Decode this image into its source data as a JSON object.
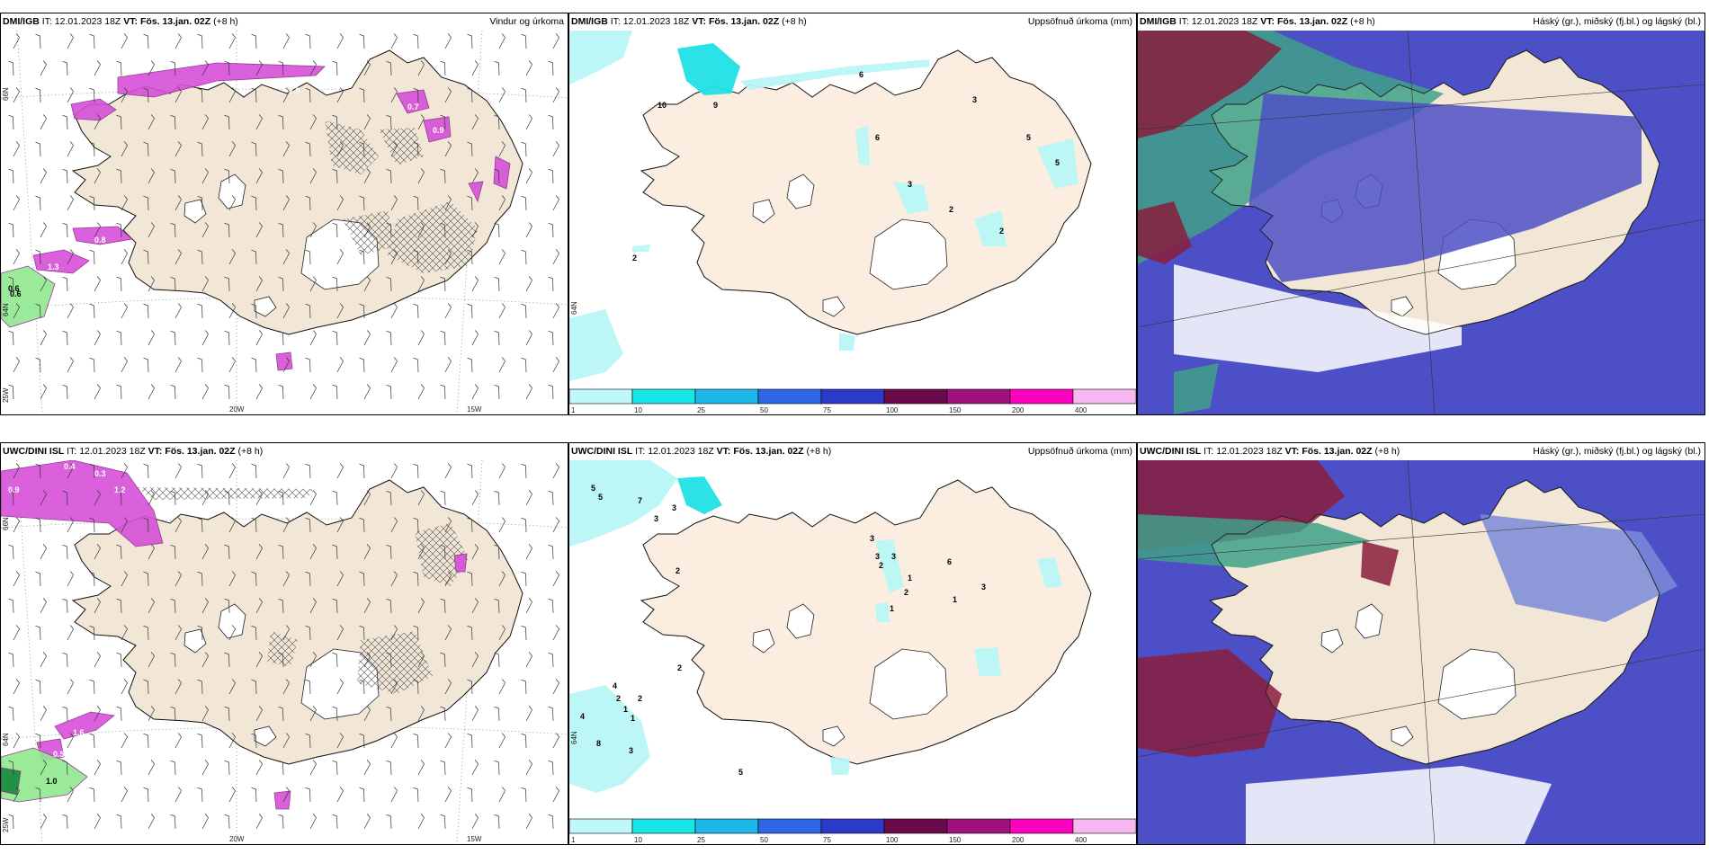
{
  "panels": [
    {
      "id": "p1",
      "source": "DMI/IGB",
      "it_label": "IT:",
      "it_value": "12.01.2023 18Z",
      "vt_label": "VT:",
      "vt_value": "Fös. 13.jan. 02Z",
      "lead": "(+8 h)",
      "title": "Vindur og úrkoma",
      "type": "wind",
      "labels": [
        "0.6",
        "0.4",
        "0.5",
        "2.9",
        "0.7",
        "0.9",
        "0.8",
        "1.3",
        "0.6"
      ]
    },
    {
      "id": "p2",
      "source": "DMI/IGB",
      "it_label": "IT:",
      "it_value": "12.01.2023 18Z",
      "vt_label": "VT:",
      "vt_value": "Fös. 13.jan. 02Z",
      "lead": "(+8 h)",
      "title": "Uppsöfnuð úrkoma (mm)",
      "type": "accum",
      "labels": [
        "6",
        "3",
        "5",
        "5",
        "3",
        "2",
        "2",
        "2",
        "10",
        "9",
        "6"
      ]
    },
    {
      "id": "p3",
      "source": "DMI/IGB",
      "it_label": "IT:",
      "it_value": "12.01.2023 18Z",
      "vt_label": "VT:",
      "vt_value": "Fös. 13.jan. 02Z",
      "lead": "(+8 h)",
      "title": "Háský (gr.), miðský (fj.bl.) og lágský (bl.)",
      "type": "cloud"
    },
    {
      "id": "p4",
      "source": "UWC/DINI ISL",
      "it_label": "IT:",
      "it_value": "12.01.2023 18Z",
      "vt_label": "VT:",
      "vt_value": "Fös. 13.jan. 02Z",
      "lead": "(+8 h)",
      "title": "",
      "type": "wind",
      "labels": [
        "0.9",
        "0.4",
        "0.3",
        "1.6",
        "0.5",
        "1.0",
        "1.2"
      ]
    },
    {
      "id": "p5",
      "source": "UWC/DINI ISL",
      "it_label": "IT:",
      "it_value": "12.01.2023 18Z",
      "vt_label": "VT:",
      "vt_value": "Fös. 13.jan. 02Z",
      "lead": "(+8 h)",
      "title": "Uppsöfnuð úrkoma (mm)",
      "type": "accum",
      "labels": [
        "5",
        "5",
        "7",
        "3",
        "3",
        "2",
        "3",
        "3",
        "3",
        "2",
        "1",
        "6",
        "3",
        "2",
        "1",
        "1",
        "2",
        "4",
        "4",
        "2",
        "2",
        "1",
        "1",
        "8",
        "3",
        "5"
      ]
    },
    {
      "id": "p6",
      "source": "UWC/DINI ISL",
      "it_label": "IT:",
      "it_value": "12.01.2023 18Z",
      "vt_label": "VT:",
      "vt_value": "Fös. 13.jan. 02Z",
      "lead": "(+8 h)",
      "title": "Háský (gr.), miðský (fj.bl.) og lágský (bl.)",
      "type": "cloud"
    }
  ],
  "axes": {
    "lat_labels": [
      "66N",
      "64N"
    ],
    "lon_labels": [
      "25W",
      "20W",
      "15W"
    ]
  },
  "colorbar": {
    "ticks": [
      "1",
      "10",
      "25",
      "50",
      "75",
      "100",
      "150",
      "200",
      "400"
    ],
    "colors": [
      "#bff8f8",
      "#19e6e6",
      "#1ab7e8",
      "#2f66e6",
      "#2b3ac8",
      "#6a0a4a",
      "#a0107e",
      "#ff00c0",
      "#f5b8f0"
    ]
  },
  "colors": {
    "land": "#f2e6d6",
    "land_accum": "#fbeee0",
    "cyan_light": "#b8f6f6",
    "cyan": "#20e2e6",
    "magenta": "#d650d8",
    "magenta_dark": "#8a2a8a",
    "green": "#90e890",
    "green_dark": "#138a3a",
    "cloud_blue": "#4c4fc6",
    "cloud_light": "#5a78e0",
    "maroon": "#8a1c3c",
    "teal": "#3fa088"
  }
}
